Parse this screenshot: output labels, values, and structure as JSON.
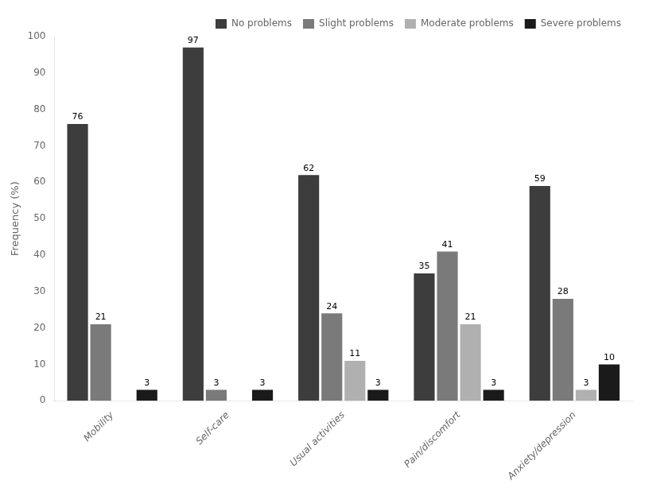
{
  "chart_data": {
    "type": "bar",
    "categories": [
      "Mobility",
      "Self-care",
      "Usual activities",
      "Pain/discomfort",
      "Anxiety/depression"
    ],
    "series": [
      {
        "name": "No problems",
        "color": "#3d3d3d",
        "values": [
          76,
          97,
          62,
          35,
          59
        ]
      },
      {
        "name": "Slight problems",
        "color": "#7a7a7a",
        "values": [
          21,
          3,
          24,
          41,
          28
        ]
      },
      {
        "name": "Moderate problems",
        "color": "#b0b0b0",
        "values": [
          0,
          0,
          11,
          21,
          3
        ]
      },
      {
        "name": "Severe problems",
        "color": "#1a1a1a",
        "values": [
          3,
          3,
          3,
          3,
          10
        ]
      }
    ],
    "ylabel": "Frequency (%)",
    "ylim": [
      0,
      100
    ],
    "yticks": [
      0,
      10,
      20,
      30,
      40,
      50,
      60,
      70,
      80,
      90,
      100
    ],
    "grid": false,
    "legend": "upper right",
    "data_labels": true
  }
}
